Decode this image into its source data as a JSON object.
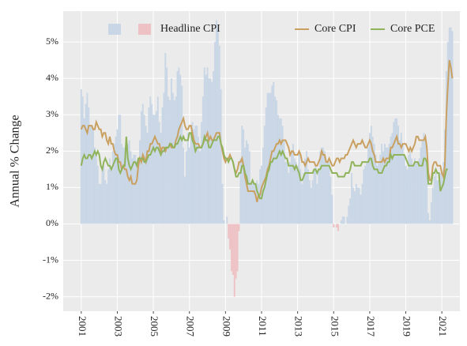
{
  "chart_data": {
    "type": "combo",
    "y_label": "Annual % Change",
    "x": [
      "2001-01",
      "2001-02",
      "2001-03",
      "2001-04",
      "2001-05",
      "2001-06",
      "2001-07",
      "2001-08",
      "2001-09",
      "2001-10",
      "2001-11",
      "2001-12",
      "2002-01",
      "2002-02",
      "2002-03",
      "2002-04",
      "2002-05",
      "2002-06",
      "2002-07",
      "2002-08",
      "2002-09",
      "2002-10",
      "2002-11",
      "2002-12",
      "2003-01",
      "2003-02",
      "2003-03",
      "2003-04",
      "2003-05",
      "2003-06",
      "2003-07",
      "2003-08",
      "2003-09",
      "2003-10",
      "2003-11",
      "2003-12",
      "2004-01",
      "2004-02",
      "2004-03",
      "2004-04",
      "2004-05",
      "2004-06",
      "2004-07",
      "2004-08",
      "2004-09",
      "2004-10",
      "2004-11",
      "2004-12",
      "2005-01",
      "2005-02",
      "2005-03",
      "2005-04",
      "2005-05",
      "2005-06",
      "2005-07",
      "2005-08",
      "2005-09",
      "2005-10",
      "2005-11",
      "2005-12",
      "2006-01",
      "2006-02",
      "2006-03",
      "2006-04",
      "2006-05",
      "2006-06",
      "2006-07",
      "2006-08",
      "2006-09",
      "2006-10",
      "2006-11",
      "2006-12",
      "2007-01",
      "2007-02",
      "2007-03",
      "2007-04",
      "2007-05",
      "2007-06",
      "2007-07",
      "2007-08",
      "2007-09",
      "2007-10",
      "2007-11",
      "2007-12",
      "2008-01",
      "2008-02",
      "2008-03",
      "2008-04",
      "2008-05",
      "2008-06",
      "2008-07",
      "2008-08",
      "2008-09",
      "2008-10",
      "2008-11",
      "2008-12",
      "2009-01",
      "2009-02",
      "2009-03",
      "2009-04",
      "2009-05",
      "2009-06",
      "2009-07",
      "2009-08",
      "2009-09",
      "2009-10",
      "2009-11",
      "2009-12",
      "2010-01",
      "2010-02",
      "2010-03",
      "2010-04",
      "2010-05",
      "2010-06",
      "2010-07",
      "2010-08",
      "2010-09",
      "2010-10",
      "2010-11",
      "2010-12",
      "2011-01",
      "2011-02",
      "2011-03",
      "2011-04",
      "2011-05",
      "2011-06",
      "2011-07",
      "2011-08",
      "2011-09",
      "2011-10",
      "2011-11",
      "2011-12",
      "2012-01",
      "2012-02",
      "2012-03",
      "2012-04",
      "2012-05",
      "2012-06",
      "2012-07",
      "2012-08",
      "2012-09",
      "2012-10",
      "2012-11",
      "2012-12",
      "2013-01",
      "2013-02",
      "2013-03",
      "2013-04",
      "2013-05",
      "2013-06",
      "2013-07",
      "2013-08",
      "2013-09",
      "2013-10",
      "2013-11",
      "2013-12",
      "2014-01",
      "2014-02",
      "2014-03",
      "2014-04",
      "2014-05",
      "2014-06",
      "2014-07",
      "2014-08",
      "2014-09",
      "2014-10",
      "2014-11",
      "2014-12",
      "2015-01",
      "2015-02",
      "2015-03",
      "2015-04",
      "2015-05",
      "2015-06",
      "2015-07",
      "2015-08",
      "2015-09",
      "2015-10",
      "2015-11",
      "2015-12",
      "2016-01",
      "2016-02",
      "2016-03",
      "2016-04",
      "2016-05",
      "2016-06",
      "2016-07",
      "2016-08",
      "2016-09",
      "2016-10",
      "2016-11",
      "2016-12",
      "2017-01",
      "2017-02",
      "2017-03",
      "2017-04",
      "2017-05",
      "2017-06",
      "2017-07",
      "2017-08",
      "2017-09",
      "2017-10",
      "2017-11",
      "2017-12",
      "2018-01",
      "2018-02",
      "2018-03",
      "2018-04",
      "2018-05",
      "2018-06",
      "2018-07",
      "2018-08",
      "2018-09",
      "2018-10",
      "2018-11",
      "2018-12",
      "2019-01",
      "2019-02",
      "2019-03",
      "2019-04",
      "2019-05",
      "2019-06",
      "2019-07",
      "2019-08",
      "2019-09",
      "2019-10",
      "2019-11",
      "2019-12",
      "2020-01",
      "2020-02",
      "2020-03",
      "2020-04",
      "2020-05",
      "2020-06",
      "2020-07",
      "2020-08",
      "2020-09",
      "2020-10",
      "2020-11",
      "2020-12",
      "2021-01",
      "2021-02",
      "2021-03",
      "2021-04",
      "2021-05",
      "2021-06",
      "2021-07",
      "2021-08"
    ],
    "series": [
      {
        "name": "Headline CPI",
        "type": "bar",
        "color": "#c8d6e6",
        "negative_color": "#eec2c5",
        "values": [
          3.7,
          3.5,
          2.9,
          3.3,
          3.6,
          3.2,
          2.7,
          2.7,
          2.6,
          2.1,
          1.9,
          1.6,
          1.1,
          1.1,
          1.5,
          1.6,
          1.2,
          1.1,
          1.5,
          1.8,
          1.5,
          2.0,
          2.2,
          2.4,
          2.6,
          3.0,
          3.0,
          2.2,
          2.1,
          2.1,
          2.1,
          2.2,
          2.3,
          2.0,
          1.8,
          1.9,
          1.9,
          1.7,
          1.7,
          2.3,
          3.1,
          3.3,
          3.0,
          2.7,
          2.5,
          3.2,
          3.5,
          3.3,
          3.0,
          3.0,
          3.1,
          3.5,
          2.8,
          2.5,
          3.2,
          3.6,
          4.7,
          4.3,
          3.5,
          3.4,
          4.0,
          3.6,
          3.4,
          3.5,
          4.2,
          4.3,
          4.1,
          3.8,
          2.1,
          1.3,
          2.0,
          2.5,
          2.1,
          2.4,
          2.8,
          2.6,
          2.7,
          2.7,
          2.4,
          2.0,
          2.8,
          3.5,
          4.3,
          4.1,
          4.3,
          4.0,
          4.0,
          3.9,
          4.2,
          5.0,
          5.6,
          5.4,
          4.9,
          3.7,
          1.1,
          0.1,
          0.0,
          0.2,
          -0.4,
          -0.7,
          -1.3,
          -1.4,
          -2.0,
          -1.5,
          -1.3,
          -0.2,
          1.8,
          2.7,
          2.6,
          2.1,
          2.3,
          2.2,
          2.0,
          1.1,
          1.2,
          1.1,
          1.1,
          1.2,
          1.1,
          1.5,
          1.6,
          2.1,
          2.7,
          3.2,
          3.6,
          3.6,
          3.6,
          3.8,
          3.9,
          3.5,
          3.4,
          3.0,
          2.9,
          2.9,
          2.7,
          2.3,
          1.7,
          1.7,
          1.4,
          1.7,
          2.0,
          2.2,
          1.8,
          1.7,
          1.6,
          2.0,
          1.5,
          1.1,
          1.4,
          1.8,
          2.0,
          1.5,
          1.2,
          1.0,
          1.2,
          1.5,
          1.6,
          1.1,
          1.5,
          2.0,
          2.1,
          2.1,
          2.0,
          1.7,
          1.7,
          1.7,
          1.3,
          0.8,
          -0.1,
          0.0,
          -0.1,
          -0.2,
          0.0,
          0.1,
          0.2,
          0.2,
          0.0,
          0.2,
          0.5,
          0.7,
          1.4,
          1.0,
          0.9,
          1.1,
          1.0,
          1.0,
          0.8,
          1.1,
          1.5,
          1.6,
          1.7,
          2.1,
          2.5,
          2.7,
          2.4,
          2.2,
          1.9,
          1.6,
          1.7,
          1.9,
          2.2,
          2.0,
          2.2,
          2.1,
          2.1,
          2.2,
          2.4,
          2.5,
          2.8,
          2.9,
          2.9,
          2.7,
          2.3,
          2.5,
          2.2,
          1.9,
          1.6,
          1.5,
          1.9,
          2.0,
          1.8,
          1.6,
          1.8,
          1.7,
          1.7,
          1.8,
          2.1,
          2.3,
          2.5,
          2.3,
          1.5,
          0.3,
          0.1,
          0.6,
          1.0,
          1.3,
          1.4,
          1.2,
          1.2,
          1.4,
          1.4,
          1.7,
          2.6,
          4.2,
          5.0,
          5.4,
          5.4,
          5.3
        ]
      },
      {
        "name": "Core CPI",
        "type": "line",
        "color": "#c9a060",
        "values": [
          2.6,
          2.7,
          2.7,
          2.6,
          2.5,
          2.7,
          2.7,
          2.7,
          2.6,
          2.6,
          2.8,
          2.7,
          2.6,
          2.6,
          2.4,
          2.5,
          2.5,
          2.3,
          2.2,
          2.4,
          2.2,
          2.2,
          2.0,
          1.9,
          1.9,
          1.7,
          1.7,
          1.5,
          1.6,
          1.5,
          1.5,
          1.3,
          1.2,
          1.3,
          1.1,
          1.1,
          1.1,
          1.2,
          1.6,
          1.8,
          1.7,
          1.9,
          1.8,
          1.7,
          2.0,
          2.0,
          2.2,
          2.2,
          2.3,
          2.4,
          2.3,
          2.2,
          2.2,
          2.0,
          2.1,
          2.1,
          2.0,
          2.1,
          2.1,
          2.2,
          2.1,
          2.1,
          2.1,
          2.3,
          2.4,
          2.6,
          2.7,
          2.8,
          2.9,
          2.7,
          2.6,
          2.6,
          2.7,
          2.7,
          2.5,
          2.3,
          2.2,
          2.2,
          2.2,
          2.1,
          2.1,
          2.2,
          2.3,
          2.4,
          2.5,
          2.3,
          2.4,
          2.3,
          2.3,
          2.4,
          2.5,
          2.5,
          2.5,
          2.2,
          2.0,
          1.8,
          1.7,
          1.8,
          1.8,
          1.9,
          1.8,
          1.7,
          1.5,
          1.4,
          1.5,
          1.7,
          1.7,
          1.8,
          1.6,
          1.3,
          1.1,
          0.9,
          0.9,
          0.9,
          0.9,
          0.9,
          0.8,
          0.6,
          0.8,
          0.8,
          1.0,
          1.1,
          1.2,
          1.3,
          1.5,
          1.6,
          1.8,
          2.0,
          2.0,
          2.1,
          2.2,
          2.2,
          2.3,
          2.2,
          2.3,
          2.3,
          2.3,
          2.2,
          2.1,
          1.9,
          2.0,
          2.0,
          1.9,
          1.9,
          1.9,
          2.0,
          1.9,
          1.7,
          1.7,
          1.6,
          1.7,
          1.8,
          1.7,
          1.7,
          1.7,
          1.7,
          1.6,
          1.6,
          1.7,
          1.8,
          2.0,
          1.9,
          1.9,
          1.7,
          1.7,
          1.8,
          1.7,
          1.6,
          1.6,
          1.7,
          1.8,
          1.8,
          1.7,
          1.8,
          1.8,
          1.8,
          1.9,
          1.9,
          2.0,
          2.1,
          2.2,
          2.3,
          2.2,
          2.1,
          2.2,
          2.2,
          2.2,
          2.3,
          2.2,
          2.1,
          2.1,
          2.2,
          2.3,
          2.2,
          2.0,
          1.9,
          1.7,
          1.7,
          1.7,
          1.7,
          1.7,
          1.8,
          1.7,
          1.8,
          1.8,
          1.8,
          2.1,
          2.1,
          2.2,
          2.3,
          2.4,
          2.2,
          2.2,
          2.1,
          2.2,
          2.2,
          2.2,
          2.1,
          2.0,
          2.1,
          2.0,
          2.1,
          2.2,
          2.4,
          2.4,
          2.3,
          2.3,
          2.3,
          2.3,
          2.4,
          2.1,
          1.4,
          1.2,
          1.2,
          1.6,
          1.7,
          1.7,
          1.6,
          1.6,
          1.6,
          1.4,
          1.3,
          1.6,
          3.0,
          3.8,
          4.5,
          4.3,
          4.0
        ]
      },
      {
        "name": "Core PCE",
        "type": "line",
        "color": "#8fb35a",
        "values": [
          1.6,
          1.8,
          1.9,
          1.8,
          1.8,
          1.9,
          1.9,
          1.8,
          1.9,
          2.0,
          1.9,
          2.0,
          1.9,
          1.6,
          1.5,
          1.7,
          1.8,
          1.7,
          1.6,
          1.6,
          1.5,
          1.6,
          1.7,
          1.8,
          1.8,
          1.5,
          1.4,
          1.5,
          1.6,
          1.6,
          2.4,
          1.8,
          1.6,
          1.5,
          1.6,
          1.7,
          1.7,
          1.6,
          1.8,
          1.8,
          1.8,
          1.8,
          1.7,
          1.7,
          1.8,
          1.9,
          1.9,
          2.0,
          2.1,
          2.0,
          2.1,
          2.1,
          2.0,
          1.9,
          2.0,
          2.0,
          2.1,
          2.1,
          2.1,
          2.2,
          2.2,
          2.1,
          2.1,
          2.2,
          2.2,
          2.3,
          2.4,
          2.3,
          2.4,
          2.3,
          2.3,
          2.3,
          2.5,
          2.5,
          2.3,
          2.2,
          2.0,
          2.1,
          2.1,
          2.1,
          2.1,
          2.2,
          2.4,
          2.3,
          2.3,
          2.1,
          2.1,
          2.2,
          2.3,
          2.3,
          2.3,
          2.4,
          2.4,
          2.2,
          2.1,
          1.9,
          1.8,
          1.8,
          1.7,
          1.8,
          1.8,
          1.7,
          1.5,
          1.3,
          1.3,
          1.4,
          1.4,
          1.6,
          1.6,
          1.4,
          1.3,
          1.1,
          1.1,
          1.1,
          1.2,
          1.1,
          1.1,
          0.9,
          0.8,
          0.7,
          0.7,
          0.9,
          1.0,
          1.2,
          1.4,
          1.5,
          1.7,
          1.7,
          1.8,
          1.8,
          1.8,
          1.9,
          2.0,
          1.9,
          2.0,
          1.9,
          1.8,
          1.8,
          1.6,
          1.6,
          1.6,
          1.6,
          1.5,
          1.6,
          1.5,
          1.4,
          1.2,
          1.2,
          1.3,
          1.4,
          1.4,
          1.4,
          1.4,
          1.4,
          1.4,
          1.5,
          1.5,
          1.4,
          1.5,
          1.5,
          1.6,
          1.6,
          1.6,
          1.6,
          1.6,
          1.6,
          1.5,
          1.4,
          1.4,
          1.4,
          1.4,
          1.3,
          1.3,
          1.3,
          1.3,
          1.3,
          1.4,
          1.4,
          1.4,
          1.5,
          1.7,
          1.7,
          1.6,
          1.6,
          1.6,
          1.6,
          1.6,
          1.7,
          1.7,
          1.7,
          1.7,
          1.7,
          1.8,
          1.8,
          1.6,
          1.5,
          1.5,
          1.5,
          1.4,
          1.4,
          1.4,
          1.5,
          1.6,
          1.6,
          1.7,
          1.7,
          1.9,
          1.8,
          1.9,
          1.9,
          1.9,
          1.9,
          1.9,
          1.9,
          1.9,
          1.9,
          1.8,
          1.7,
          1.6,
          1.6,
          1.6,
          1.6,
          1.7,
          1.7,
          1.7,
          1.6,
          1.6,
          1.6,
          1.8,
          1.8,
          1.7,
          1.1,
          1.1,
          1.1,
          1.4,
          1.4,
          1.5,
          1.4,
          1.4,
          0.9,
          1.0,
          1.1,
          1.3,
          1.5,
          1.5,
          null,
          null,
          null
        ]
      }
    ],
    "xlim": [
      "2000-01",
      "2022-01"
    ],
    "xticks": [
      "2001",
      "2003",
      "2005",
      "2007",
      "2009",
      "2011",
      "2013",
      "2015",
      "2017",
      "2019",
      "2021"
    ],
    "ylim": [
      -2.4,
      5.85
    ],
    "yticks": [
      {
        "value": -2,
        "label": "-2%"
      },
      {
        "value": -1,
        "label": "-1%"
      },
      {
        "value": 0,
        "label": "0%"
      },
      {
        "value": 1,
        "label": "1%"
      },
      {
        "value": 2,
        "label": "2%"
      },
      {
        "value": 3,
        "label": "3%"
      },
      {
        "value": 4,
        "label": "4%"
      },
      {
        "value": 5,
        "label": "5%"
      }
    ],
    "grid": true,
    "legend": "top"
  }
}
